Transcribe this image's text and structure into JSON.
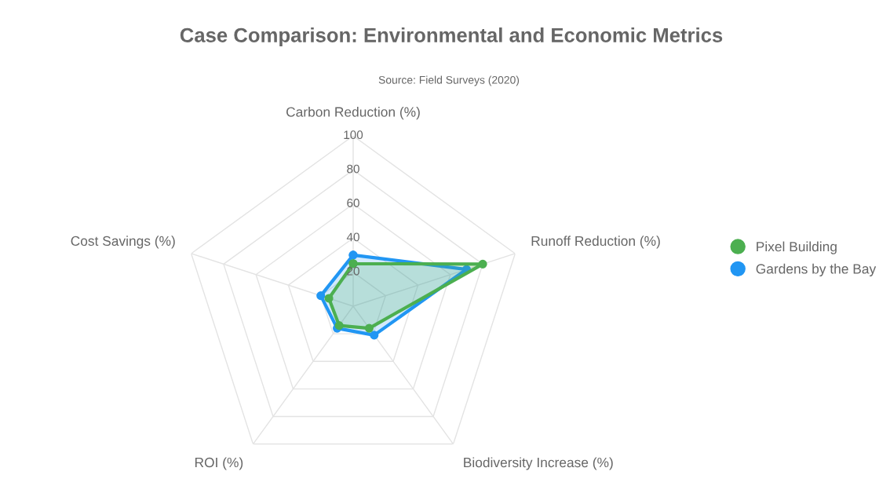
{
  "chart_data": {
    "type": "radar",
    "title": "Case Comparison: Environmental and Economic Metrics",
    "annotations": [
      "Source: Field Surveys (2020)"
    ],
    "categories": [
      "Carbon Reduction (%)",
      "Runoff Reduction (%)",
      "Biodiversity Increase (%)",
      "ROI (%)",
      "Cost Savings (%)"
    ],
    "series": [
      {
        "name": "Pixel Building",
        "color": "#4caf50",
        "values": [
          25,
          80,
          16,
          14,
          15
        ]
      },
      {
        "name": "Gardens by the Bay",
        "color": "#2196f3",
        "values": [
          30,
          70,
          21,
          16,
          20
        ]
      }
    ],
    "ylim": [
      0,
      100
    ],
    "yticks": [
      20,
      40,
      60,
      80,
      100
    ],
    "grid": true,
    "legend": "right",
    "marker": "circle"
  }
}
